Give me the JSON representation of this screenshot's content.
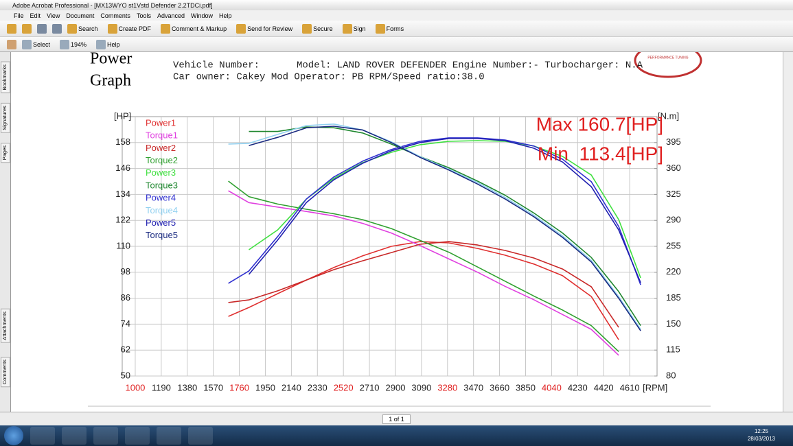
{
  "window": {
    "title": "Adobe Acrobat Professional - [MX13WYO st1Vstd Defender 2.2TDCi.pdf]",
    "menu": [
      "File",
      "Edit",
      "View",
      "Document",
      "Comments",
      "Tools",
      "Advanced",
      "Window",
      "Help"
    ],
    "toolbar1": [
      "Search",
      "Create PDF",
      "Comment & Markup",
      "Send for Review",
      "Secure",
      "Sign",
      "Forms"
    ],
    "toolbar2": [
      "Select",
      "194%",
      "Help"
    ],
    "side_tabs": [
      "Bookmarks",
      "Signatures",
      "Pages",
      "Attachments",
      "Comments"
    ],
    "page_indicator": "1 of 1",
    "clock": {
      "time": "12:25",
      "date": "28/03/2013"
    }
  },
  "document": {
    "heading": [
      "Power",
      "Graph"
    ],
    "vehicle_number": "Vehicle Number:",
    "model": "Model: LAND ROVER DEFENDER Engine Number:- Turbocharger: N.A",
    "owner": "Car owner: Cakey Mod Operator: PB RPM/Speed ratio:38.0",
    "logo": "PERFORMANCE TUNING"
  },
  "chart_data": {
    "type": "line",
    "ylabel": "[HP]",
    "y2label": "[N.m]",
    "xlabel": "[RPM]",
    "annotations": [
      "Max 160.7[HP]",
      "Min  113.4[HP]"
    ],
    "annotation_color": "#e02020",
    "grid": true,
    "legend": "upper left",
    "x": [
      1680,
      1830,
      2040,
      2250,
      2450,
      2660,
      2870,
      3080,
      3290,
      3500,
      3700,
      3910,
      4120,
      4330,
      4530,
      4690
    ],
    "xlim": [
      905,
      4810
    ],
    "xticks": [
      1000,
      1190,
      1380,
      1570,
      1760,
      1950,
      2140,
      2330,
      2520,
      2710,
      2900,
      3090,
      3280,
      3470,
      3660,
      3850,
      4040,
      4230,
      4420,
      4610
    ],
    "xtick_colors": [
      "#e02020",
      "#222",
      "#222",
      "#222",
      "#e02020",
      "#222",
      "#222",
      "#222",
      "#e02020",
      "#222",
      "#222",
      "#222",
      "#e02020",
      "#222",
      "#222",
      "#222",
      "#e02020",
      "#222",
      "#222",
      "#222"
    ],
    "ylim": [
      50,
      170
    ],
    "yticks": [
      50,
      62,
      74,
      86,
      98,
      110,
      122,
      134,
      146,
      158
    ],
    "y2lim": [
      80,
      430
    ],
    "y2ticks": [
      80,
      115,
      150,
      185,
      220,
      255,
      290,
      325,
      360,
      395
    ],
    "series": [
      {
        "name": "Power1",
        "color": "#e03030",
        "values": [
          77.6,
          81.7,
          88.1,
          94.4,
          100.2,
          105.6,
          110,
          112.2,
          111.6,
          109,
          105.9,
          101.8,
          96.4,
          86.8,
          66.8,
          null
        ]
      },
      {
        "name": "Torque1",
        "color": "#e040e0",
        "axis": "y2",
        "values": [
          330,
          314,
          308,
          302,
          296,
          286,
          273,
          256,
          238,
          220,
          201,
          183,
          163,
          143,
          108,
          null
        ]
      },
      {
        "name": "Power2",
        "color": "#c82828",
        "values": [
          84,
          85.2,
          89.4,
          94.4,
          99.2,
          103.3,
          107.1,
          111,
          112.2,
          110.6,
          108.1,
          104.6,
          99.5,
          91.3,
          72.5,
          null
        ]
      },
      {
        "name": "Torque2",
        "color": "#30a030",
        "axis": "y2",
        "values": [
          343,
          322,
          312,
          305,
          299,
          291,
          279,
          263,
          247,
          227,
          208,
          188,
          169,
          148,
          113,
          null
        ]
      },
      {
        "name": "Power3",
        "color": "#40e040",
        "values": [
          null,
          108.4,
          117.6,
          131.9,
          141.4,
          148.7,
          153.5,
          157,
          158.6,
          158.9,
          158.6,
          156.4,
          151.6,
          143,
          122.4,
          95.4
        ]
      },
      {
        "name": "Torque3",
        "color": "#208830",
        "axis": "y2",
        "values": [
          null,
          410,
          410,
          416,
          415,
          408,
          393,
          376,
          361,
          343,
          324,
          300,
          273,
          240,
          194,
          148
        ]
      },
      {
        "name": "Power4",
        "color": "#3030d0",
        "values": [
          92.9,
          98.6,
          114.5,
          131.9,
          142.1,
          149.4,
          154.8,
          158.6,
          160.2,
          160.2,
          159.2,
          156.4,
          150.3,
          139.9,
          119.2,
          92.2
        ]
      },
      {
        "name": "Torque4",
        "color": "#90d0f0",
        "axis": "y2",
        "values": [
          393,
          394,
          406,
          418,
          420,
          412,
          396,
          376,
          359,
          341,
          321,
          297,
          269,
          236,
          187,
          143
        ]
      },
      {
        "name": "Power5",
        "color": "#2020b0",
        "values": [
          null,
          97,
          112.9,
          130.3,
          140.8,
          148.4,
          154.2,
          158,
          159.9,
          159.9,
          158.9,
          155.4,
          149,
          137.6,
          117.6,
          93.2
        ]
      },
      {
        "name": "Torque5",
        "color": "#1a2a80",
        "axis": "y2",
        "values": [
          null,
          391,
          402,
          415,
          417,
          412,
          395,
          375,
          358,
          339,
          319,
          295,
          267,
          234,
          185,
          141
        ]
      }
    ]
  }
}
